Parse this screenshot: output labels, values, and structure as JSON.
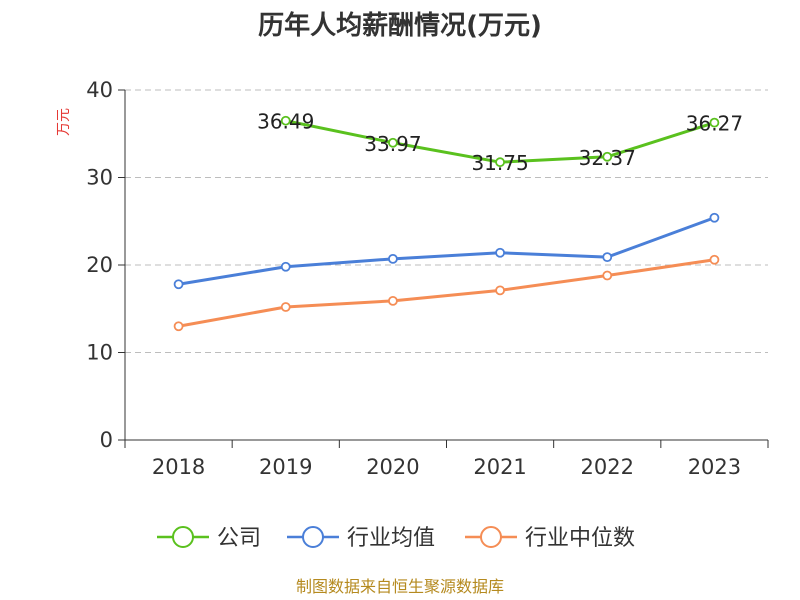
{
  "chart_data": {
    "type": "line",
    "title": "历年人均薪酬情况(万元)",
    "ylabel": "万元",
    "xlabel": "",
    "categories": [
      "2018",
      "2019",
      "2020",
      "2021",
      "2022",
      "2023"
    ],
    "ylim": [
      0,
      40
    ],
    "yticks": [
      0,
      10,
      20,
      30,
      40
    ],
    "grid": true,
    "legend_position": "bottom",
    "series": [
      {
        "name": "公司",
        "color": "#5ac11e",
        "values": [
          null,
          36.49,
          33.97,
          31.75,
          32.37,
          36.27
        ],
        "data_labels": [
          "",
          "36.49",
          "33.97",
          "31.75",
          "32.37",
          "36.27"
        ]
      },
      {
        "name": "行业均值",
        "color": "#4a7fd8",
        "values": [
          17.8,
          19.8,
          20.7,
          21.4,
          20.9,
          25.4
        ],
        "data_labels": []
      },
      {
        "name": "行业中位数",
        "color": "#f58d55",
        "values": [
          13.0,
          15.2,
          15.9,
          17.1,
          18.8,
          20.6
        ],
        "data_labels": []
      }
    ],
    "source": "制图数据来自恒生聚源数据库"
  }
}
